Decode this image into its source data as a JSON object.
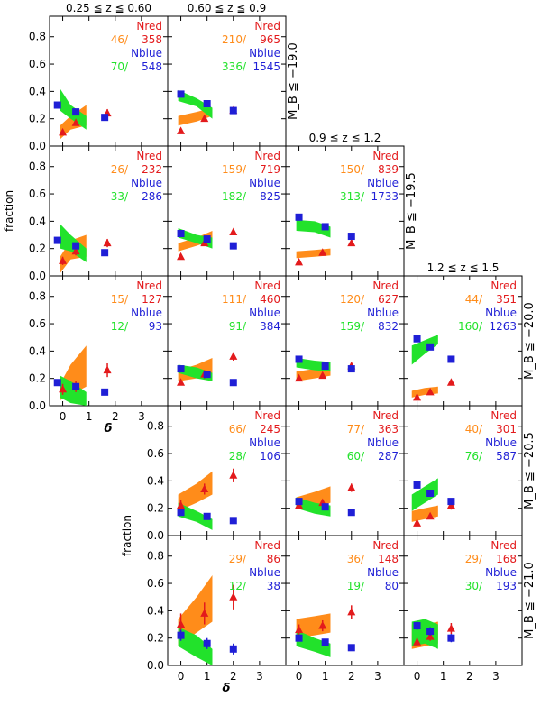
{
  "chart_data": {
    "type": "scatter",
    "xlabel": "δ",
    "ylabel": "fraction",
    "xlim": [
      -0.5,
      4.0
    ],
    "ylim": [
      0,
      0.95
    ],
    "xticks": [
      "0",
      "1",
      "2",
      "3"
    ],
    "yticks": [
      "0.0",
      "0.2",
      "0.4",
      "0.6",
      "0.8"
    ],
    "legend_labels": {
      "red": "Nred",
      "blue": "Nblue"
    },
    "z_bins": [
      "0.25 ≦ z ≦ 0.60",
      "0.60 ≦ z ≦ 0.9",
      "0.9 ≦ z ≦ 1.2",
      "1.2 ≦ z ≦ 1.5"
    ],
    "mag_bins": [
      "M_B ≦ −19.0",
      "M_B ≦ −19.5",
      "M_B ≦ −20.0",
      "M_B ≦ −20.5",
      "M_B ≦ −21.0"
    ],
    "colors": {
      "red": "#e31a1c",
      "blue": "#1f1fd6",
      "orange": "#ff8c1a",
      "green": "#22e22b"
    },
    "panels": [
      {
        "col": 0,
        "row": 0,
        "counts": {
          "orange": "46/",
          "red": "358",
          "green": "70/",
          "blue": "548"
        },
        "red": [
          [
            0.0,
            0.1
          ],
          [
            0.5,
            0.17
          ],
          [
            1.7,
            0.24
          ]
        ],
        "red_err": [
          0.02,
          0.02,
          0.03
        ],
        "blue": [
          [
            -0.2,
            0.3
          ],
          [
            0.5,
            0.25
          ],
          [
            1.6,
            0.21
          ]
        ],
        "blue_err": [
          0.0,
          0.0,
          0.0
        ],
        "orange_band": [
          [
            -0.1,
            0.05,
            0.15
          ],
          [
            0.3,
            0.12,
            0.22
          ],
          [
            0.9,
            0.15,
            0.3
          ]
        ],
        "green_band": [
          [
            -0.1,
            0.26,
            0.42
          ],
          [
            0.3,
            0.2,
            0.3
          ],
          [
            0.9,
            0.12,
            0.22
          ]
        ]
      },
      {
        "col": 1,
        "row": 0,
        "counts": {
          "orange": "210/",
          "red": "965",
          "green": "336/",
          "blue": "1545"
        },
        "red": [
          [
            0.0,
            0.11
          ],
          [
            0.9,
            0.2
          ],
          [
            2.0,
            0.26
          ]
        ],
        "red_err": [
          0.01,
          0.01,
          0.02
        ],
        "blue": [
          [
            0.0,
            0.38
          ],
          [
            1.0,
            0.31
          ],
          [
            2.0,
            0.26
          ]
        ],
        "blue_err": [
          0,
          0,
          0
        ],
        "orange_band": [
          [
            -0.1,
            0.15,
            0.22
          ],
          [
            0.6,
            0.18,
            0.25
          ],
          [
            1.2,
            0.22,
            0.28
          ]
        ],
        "green_band": [
          [
            -0.1,
            0.33,
            0.41
          ],
          [
            0.6,
            0.29,
            0.35
          ],
          [
            1.2,
            0.2,
            0.28
          ]
        ]
      },
      {
        "col": 0,
        "row": 1,
        "counts": {
          "orange": "26/",
          "red": "232",
          "green": "33/",
          "blue": "286"
        },
        "red": [
          [
            0.0,
            0.11
          ],
          [
            0.5,
            0.18
          ],
          [
            1.7,
            0.24
          ]
        ],
        "red_err": [
          0.03,
          0.03,
          0.03
        ],
        "blue": [
          [
            -0.2,
            0.26
          ],
          [
            0.5,
            0.22
          ],
          [
            1.6,
            0.17
          ]
        ],
        "blue_err": [
          0,
          0,
          0
        ],
        "orange_band": [
          [
            -0.1,
            0.02,
            0.14
          ],
          [
            0.3,
            0.12,
            0.26
          ],
          [
            0.9,
            0.14,
            0.3
          ]
        ],
        "green_band": [
          [
            -0.1,
            0.2,
            0.38
          ],
          [
            0.3,
            0.18,
            0.3
          ],
          [
            0.9,
            0.1,
            0.2
          ]
        ]
      },
      {
        "col": 1,
        "row": 1,
        "counts": {
          "orange": "159/",
          "red": "719",
          "green": "182/",
          "blue": "825"
        },
        "red": [
          [
            0.0,
            0.14
          ],
          [
            0.9,
            0.24
          ],
          [
            2.0,
            0.32
          ]
        ],
        "red_err": [
          0.02,
          0.02,
          0.02
        ],
        "blue": [
          [
            0.0,
            0.31
          ],
          [
            1.0,
            0.27
          ],
          [
            2.0,
            0.22
          ]
        ],
        "blue_err": [
          0,
          0,
          0
        ],
        "orange_band": [
          [
            -0.1,
            0.18,
            0.24
          ],
          [
            0.6,
            0.22,
            0.28
          ],
          [
            1.2,
            0.26,
            0.33
          ]
        ],
        "green_band": [
          [
            -0.1,
            0.28,
            0.35
          ],
          [
            0.6,
            0.24,
            0.3
          ],
          [
            1.2,
            0.2,
            0.28
          ]
        ]
      },
      {
        "col": 2,
        "row": 1,
        "counts": {
          "orange": "150/",
          "red": "839",
          "green": "313/",
          "blue": "1733"
        },
        "red": [
          [
            0.0,
            0.1
          ],
          [
            0.9,
            0.17
          ],
          [
            2.0,
            0.24
          ]
        ],
        "red_err": [
          0.01,
          0.01,
          0.02
        ],
        "blue": [
          [
            0.0,
            0.43
          ],
          [
            1.0,
            0.36
          ],
          [
            2.0,
            0.29
          ]
        ],
        "blue_err": [
          0,
          0,
          0
        ],
        "orange_band": [
          [
            -0.1,
            0.13,
            0.18
          ],
          [
            0.6,
            0.14,
            0.19
          ],
          [
            1.2,
            0.15,
            0.2
          ]
        ],
        "green_band": [
          [
            -0.1,
            0.33,
            0.41
          ],
          [
            0.6,
            0.32,
            0.4
          ],
          [
            1.2,
            0.28,
            0.36
          ]
        ]
      },
      {
        "col": 0,
        "row": 2,
        "counts": {
          "orange": "15/",
          "red": "127",
          "green": "12/",
          "blue": "93"
        },
        "red": [
          [
            0.0,
            0.12
          ],
          [
            0.5,
            0.14
          ],
          [
            1.7,
            0.26
          ]
        ],
        "red_err": [
          0.04,
          0.04,
          0.05
        ],
        "blue": [
          [
            -0.2,
            0.17
          ],
          [
            0.5,
            0.14
          ],
          [
            1.6,
            0.1
          ]
        ],
        "blue_err": [
          0,
          0,
          0
        ],
        "orange_band": [
          [
            -0.1,
            0.04,
            0.16
          ],
          [
            0.3,
            0.08,
            0.3
          ],
          [
            0.9,
            0.14,
            0.44
          ]
        ],
        "green_band": [
          [
            -0.1,
            0.06,
            0.22
          ],
          [
            0.3,
            0.02,
            0.18
          ],
          [
            0.9,
            0.0,
            0.1
          ]
        ]
      },
      {
        "col": 1,
        "row": 2,
        "counts": {
          "orange": "111/",
          "red": "460",
          "green": "91/",
          "blue": "384"
        },
        "red": [
          [
            0.0,
            0.17
          ],
          [
            0.9,
            0.23
          ],
          [
            2.0,
            0.36
          ]
        ],
        "red_err": [
          0.02,
          0.03,
          0.03
        ],
        "blue": [
          [
            0.0,
            0.27
          ],
          [
            1.0,
            0.23
          ],
          [
            2.0,
            0.17
          ]
        ],
        "blue_err": [
          0,
          0,
          0
        ],
        "orange_band": [
          [
            -0.1,
            0.18,
            0.26
          ],
          [
            0.6,
            0.2,
            0.3
          ],
          [
            1.2,
            0.22,
            0.35
          ]
        ],
        "green_band": [
          [
            -0.1,
            0.24,
            0.3
          ],
          [
            0.6,
            0.2,
            0.28
          ],
          [
            1.2,
            0.18,
            0.24
          ]
        ]
      },
      {
        "col": 2,
        "row": 2,
        "counts": {
          "orange": "120/",
          "red": "627",
          "green": "159/",
          "blue": "832"
        },
        "red": [
          [
            0.0,
            0.2
          ],
          [
            0.9,
            0.22
          ],
          [
            2.0,
            0.29
          ]
        ],
        "red_err": [
          0.02,
          0.02,
          0.02
        ],
        "blue": [
          [
            0.0,
            0.34
          ],
          [
            1.0,
            0.29
          ],
          [
            2.0,
            0.27
          ]
        ],
        "blue_err": [
          0,
          0,
          0
        ],
        "orange_band": [
          [
            -0.1,
            0.18,
            0.25
          ],
          [
            0.6,
            0.2,
            0.27
          ],
          [
            1.2,
            0.22,
            0.3
          ]
        ],
        "green_band": [
          [
            -0.1,
            0.28,
            0.35
          ],
          [
            0.6,
            0.26,
            0.33
          ],
          [
            1.2,
            0.25,
            0.32
          ]
        ]
      },
      {
        "col": 3,
        "row": 2,
        "counts": {
          "orange": "44/",
          "red": "351",
          "green": "160/",
          "blue": "1263"
        },
        "red": [
          [
            0.0,
            0.06
          ],
          [
            0.5,
            0.1
          ],
          [
            1.3,
            0.17
          ]
        ],
        "red_err": [
          0.01,
          0.01,
          0.02
        ],
        "blue": [
          [
            0.0,
            0.49
          ],
          [
            0.5,
            0.43
          ],
          [
            1.3,
            0.34
          ]
        ],
        "blue_err": [
          0,
          0,
          0
        ],
        "orange_band": [
          [
            -0.2,
            0.06,
            0.11
          ],
          [
            0.3,
            0.08,
            0.13
          ],
          [
            0.8,
            0.09,
            0.14
          ]
        ],
        "green_band": [
          [
            -0.2,
            0.3,
            0.44
          ],
          [
            0.3,
            0.38,
            0.48
          ],
          [
            0.8,
            0.45,
            0.52
          ]
        ]
      },
      {
        "col": 1,
        "row": 3,
        "counts": {
          "orange": "66/",
          "red": "245",
          "green": "28/",
          "blue": "106"
        },
        "red": [
          [
            0.0,
            0.22
          ],
          [
            0.9,
            0.34
          ],
          [
            2.0,
            0.44
          ]
        ],
        "red_err": [
          0.04,
          0.04,
          0.05
        ],
        "blue": [
          [
            0.0,
            0.17
          ],
          [
            1.0,
            0.14
          ],
          [
            2.0,
            0.11
          ]
        ],
        "blue_err": [
          0,
          0,
          0
        ],
        "orange_band": [
          [
            -0.1,
            0.18,
            0.3
          ],
          [
            0.6,
            0.24,
            0.38
          ],
          [
            1.2,
            0.3,
            0.47
          ]
        ],
        "green_band": [
          [
            -0.1,
            0.14,
            0.24
          ],
          [
            0.6,
            0.1,
            0.18
          ],
          [
            1.2,
            0.04,
            0.12
          ]
        ]
      },
      {
        "col": 2,
        "row": 3,
        "counts": {
          "orange": "77/",
          "red": "363",
          "green": "60/",
          "blue": "287"
        },
        "red": [
          [
            0.0,
            0.22
          ],
          [
            0.9,
            0.24
          ],
          [
            2.0,
            0.35
          ]
        ],
        "red_err": [
          0.02,
          0.02,
          0.03
        ],
        "blue": [
          [
            0.0,
            0.25
          ],
          [
            1.0,
            0.21
          ],
          [
            2.0,
            0.17
          ]
        ],
        "blue_err": [
          0,
          0,
          0
        ],
        "orange_band": [
          [
            -0.1,
            0.2,
            0.28
          ],
          [
            0.6,
            0.2,
            0.32
          ],
          [
            1.2,
            0.24,
            0.36
          ]
        ],
        "green_band": [
          [
            -0.1,
            0.2,
            0.28
          ],
          [
            0.6,
            0.16,
            0.24
          ],
          [
            1.2,
            0.14,
            0.22
          ]
        ]
      },
      {
        "col": 3,
        "row": 3,
        "counts": {
          "orange": "40/",
          "red": "301",
          "green": "76/",
          "blue": "587"
        },
        "red": [
          [
            0.0,
            0.09
          ],
          [
            0.5,
            0.14
          ],
          [
            1.3,
            0.22
          ]
        ],
        "red_err": [
          0.02,
          0.02,
          0.03
        ],
        "blue": [
          [
            0.0,
            0.37
          ],
          [
            0.5,
            0.31
          ],
          [
            1.3,
            0.25
          ]
        ],
        "blue_err": [
          0,
          0,
          0
        ],
        "orange_band": [
          [
            -0.2,
            0.1,
            0.18
          ],
          [
            0.3,
            0.12,
            0.2
          ],
          [
            0.8,
            0.14,
            0.22
          ]
        ],
        "green_band": [
          [
            -0.2,
            0.18,
            0.3
          ],
          [
            0.3,
            0.24,
            0.36
          ],
          [
            0.8,
            0.3,
            0.42
          ]
        ]
      },
      {
        "col": 1,
        "row": 4,
        "counts": {
          "orange": "29/",
          "red": "86",
          "green": "12/",
          "blue": "38"
        },
        "red": [
          [
            0.0,
            0.3
          ],
          [
            0.9,
            0.38
          ],
          [
            2.0,
            0.5
          ]
        ],
        "red_err": [
          0.08,
          0.08,
          0.09
        ],
        "blue": [
          [
            0.0,
            0.22
          ],
          [
            1.0,
            0.16
          ],
          [
            2.0,
            0.12
          ]
        ],
        "blue_err": [
          0.04,
          0.04,
          0.04
        ],
        "orange_band": [
          [
            -0.1,
            0.14,
            0.34
          ],
          [
            0.6,
            0.24,
            0.5
          ],
          [
            1.2,
            0.32,
            0.66
          ]
        ],
        "green_band": [
          [
            -0.1,
            0.14,
            0.28
          ],
          [
            0.6,
            0.06,
            0.22
          ],
          [
            1.2,
            0.0,
            0.12
          ]
        ]
      },
      {
        "col": 2,
        "row": 4,
        "counts": {
          "orange": "36/",
          "red": "148",
          "green": "19/",
          "blue": "80"
        },
        "red": [
          [
            0.0,
            0.26
          ],
          [
            0.9,
            0.29
          ],
          [
            2.0,
            0.39
          ]
        ],
        "red_err": [
          0.04,
          0.04,
          0.05
        ],
        "blue": [
          [
            0.0,
            0.2
          ],
          [
            1.0,
            0.17
          ],
          [
            2.0,
            0.13
          ]
        ],
        "blue_err": [
          0.02,
          0.02,
          0.02
        ],
        "orange_band": [
          [
            -0.1,
            0.2,
            0.34
          ],
          [
            0.6,
            0.22,
            0.36
          ],
          [
            1.2,
            0.24,
            0.38
          ]
        ],
        "green_band": [
          [
            -0.1,
            0.14,
            0.26
          ],
          [
            0.6,
            0.1,
            0.2
          ],
          [
            1.2,
            0.06,
            0.16
          ]
        ]
      },
      {
        "col": 3,
        "row": 4,
        "counts": {
          "orange": "29/",
          "red": "168",
          "green": "30/",
          "blue": "193"
        },
        "red": [
          [
            0.0,
            0.17
          ],
          [
            0.5,
            0.21
          ],
          [
            1.3,
            0.27
          ]
        ],
        "red_err": [
          0.03,
          0.03,
          0.04
        ],
        "blue": [
          [
            0.0,
            0.29
          ],
          [
            0.5,
            0.25
          ],
          [
            1.3,
            0.2
          ]
        ],
        "blue_err": [
          0.03,
          0.03,
          0.03
        ],
        "orange_band": [
          [
            -0.2,
            0.12,
            0.3
          ],
          [
            0.3,
            0.14,
            0.3
          ],
          [
            0.8,
            0.16,
            0.32
          ]
        ],
        "green_band": [
          [
            -0.2,
            0.14,
            0.32
          ],
          [
            0.3,
            0.16,
            0.34
          ],
          [
            0.8,
            0.12,
            0.3
          ]
        ]
      }
    ]
  }
}
